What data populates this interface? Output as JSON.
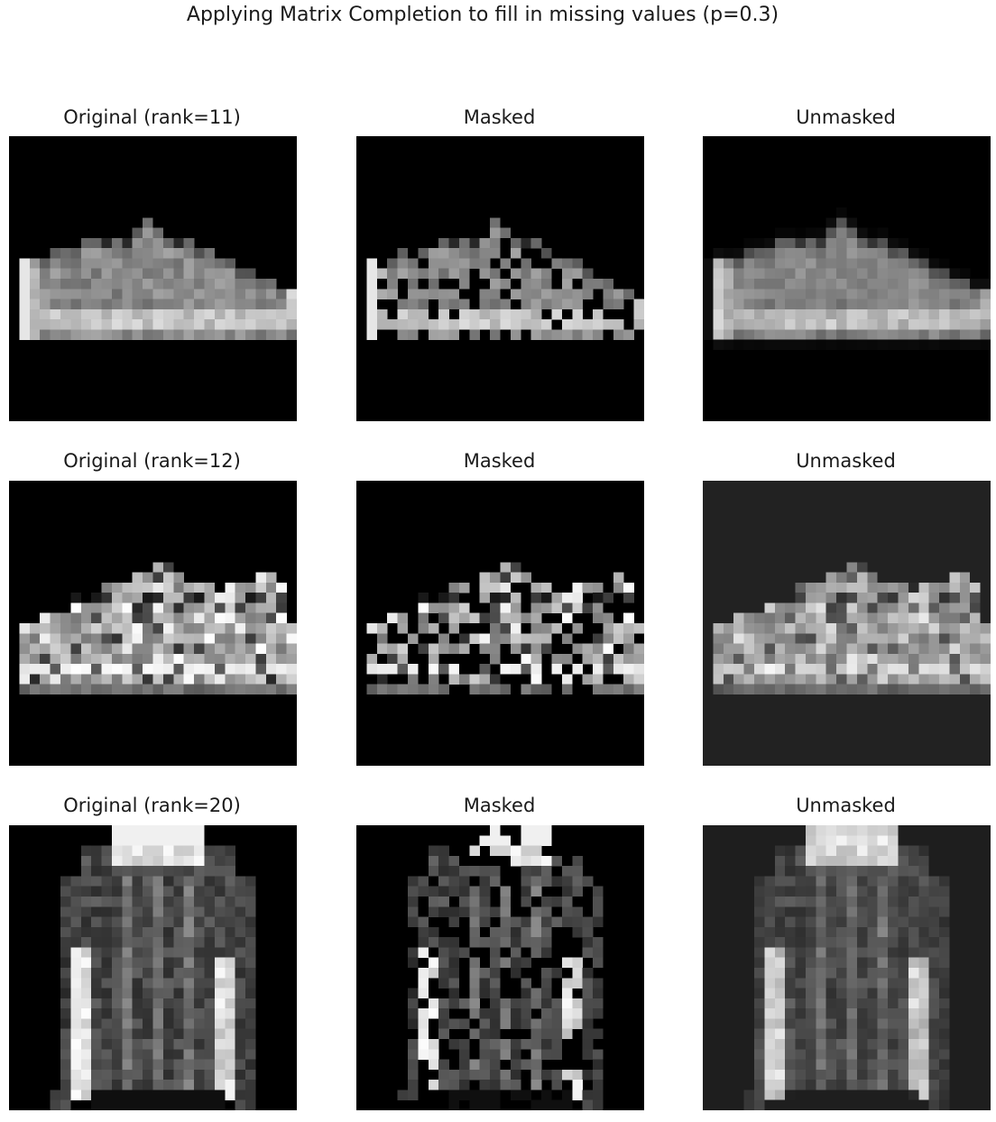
{
  "title": "Applying Matrix Completion to fill in missing values (p=0.3)",
  "grid_size": 28,
  "mask_fraction": 0.3,
  "rows": [
    {
      "item": "sneaker-low",
      "titles": {
        "original": "Original (rank=11)",
        "masked": "Masked",
        "unmasked": "Unmasked"
      },
      "unmasked_background": 0
    },
    {
      "item": "sneaker-high",
      "titles": {
        "original": "Original (rank=12)",
        "masked": "Masked",
        "unmasked": "Unmasked"
      },
      "unmasked_background": 34
    },
    {
      "item": "jacket",
      "titles": {
        "original": "Original (rank=20)",
        "masked": "Masked",
        "unmasked": "Unmasked"
      },
      "unmasked_background": 30
    }
  ]
}
